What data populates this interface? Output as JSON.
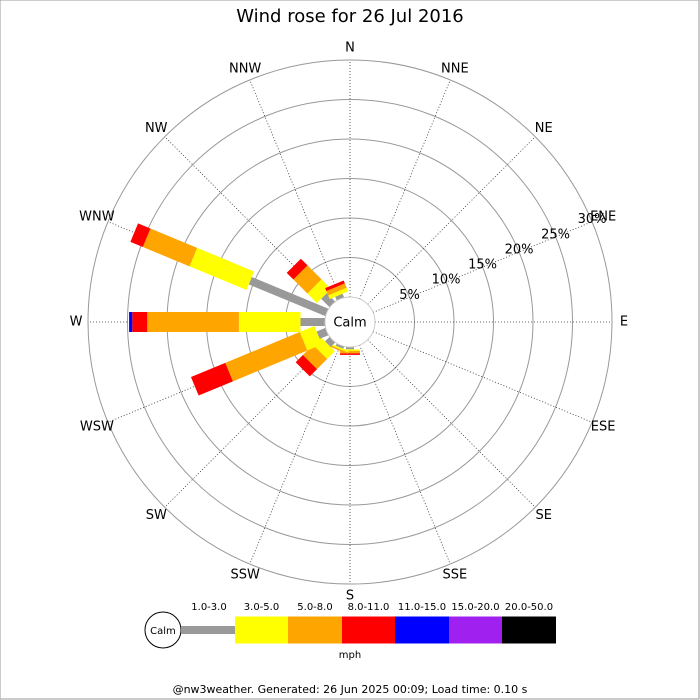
{
  "chart_data": {
    "type": "windrose",
    "title": "Wind rose for 26 Jul 2016",
    "directions": [
      "N",
      "NNE",
      "NE",
      "ENE",
      "E",
      "ESE",
      "SE",
      "SSE",
      "S",
      "SSW",
      "SW",
      "WSW",
      "W",
      "WNW",
      "NW",
      "NNW"
    ],
    "series": [
      {
        "name": "1.0-3.0",
        "color": "#999999",
        "values": [
          0,
          0,
          0,
          0,
          0,
          0,
          0,
          0,
          0.3,
          0.3,
          0.8,
          1.2,
          3.1,
          10.5,
          1.5,
          0.5
        ]
      },
      {
        "name": "3.0-5.0",
        "color": "#ffff00",
        "values": [
          0,
          0,
          0,
          0,
          0,
          0,
          0,
          0,
          0.2,
          0.2,
          1.4,
          2.0,
          7.8,
          7.8,
          1.7,
          0.5
        ]
      },
      {
        "name": "5.0-8.0",
        "color": "#ffa500",
        "values": [
          0,
          0,
          0,
          0,
          0,
          0,
          0,
          0,
          0.3,
          0.2,
          1.8,
          10.2,
          11.6,
          6.4,
          2.5,
          0.6
        ]
      },
      {
        "name": "8.0-11.0",
        "color": "#ff0000",
        "values": [
          0,
          0,
          0,
          0,
          0,
          0,
          0,
          0,
          0.2,
          0,
          1.3,
          4.7,
          1.9,
          1.7,
          1.2,
          0.4
        ]
      },
      {
        "name": "11.0-15.0",
        "color": "#0000ff",
        "values": [
          0,
          0,
          0,
          0,
          0,
          0,
          0,
          0,
          0,
          0,
          0,
          0,
          0.4,
          0,
          0,
          0
        ]
      },
      {
        "name": "15.0-20.0",
        "color": "#a020f0",
        "values": [
          0,
          0,
          0,
          0,
          0,
          0,
          0,
          0,
          0,
          0,
          0,
          0,
          0,
          0,
          0,
          0
        ]
      },
      {
        "name": "20.0-50.0",
        "color": "#000000",
        "values": [
          0,
          0,
          0,
          0,
          0,
          0,
          0,
          0,
          0,
          0,
          0,
          0,
          0,
          0,
          0,
          0
        ]
      }
    ],
    "rlim": [
      0,
      30
    ],
    "rticks": [
      {
        "value": 5,
        "label": "5%"
      },
      {
        "value": 10,
        "label": "10%"
      },
      {
        "value": 15,
        "label": "15%"
      },
      {
        "value": 20,
        "label": "20%"
      },
      {
        "value": 25,
        "label": "25%"
      },
      {
        "value": 30,
        "label": "30%"
      }
    ],
    "calm_label": "Calm",
    "unit": "mph"
  },
  "footer": "@nw3weather. Generated: 26 Jun 2025 00:09; Load time: 0.10 s"
}
